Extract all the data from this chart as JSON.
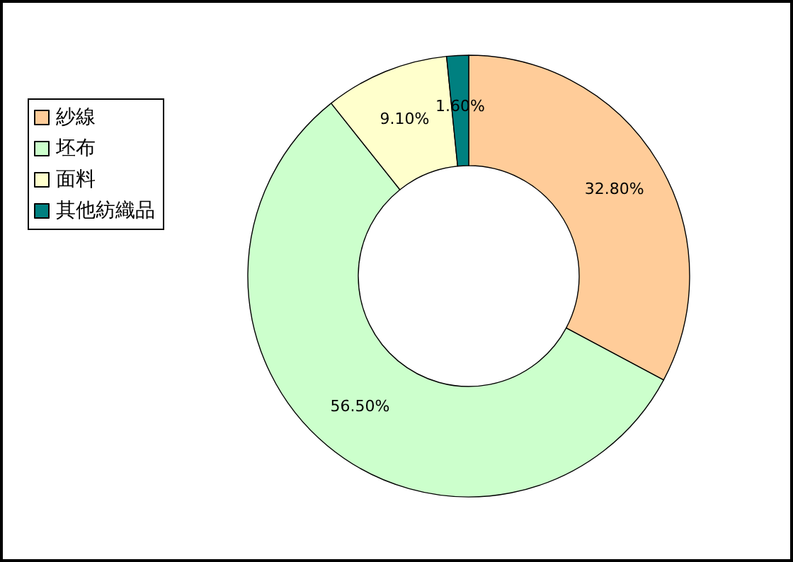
{
  "chart_data": {
    "type": "donut",
    "categories": [
      "紗線",
      "坯布",
      "面料",
      "其他紡織品"
    ],
    "values": [
      32.8,
      56.5,
      9.1,
      1.6
    ],
    "colors": [
      "#ffcc99",
      "#ccffcc",
      "#ffffcc",
      "#008080"
    ],
    "value_labels": [
      "32.80%",
      "56.50%",
      "9.10%",
      "1.60%"
    ],
    "legend": "left"
  }
}
